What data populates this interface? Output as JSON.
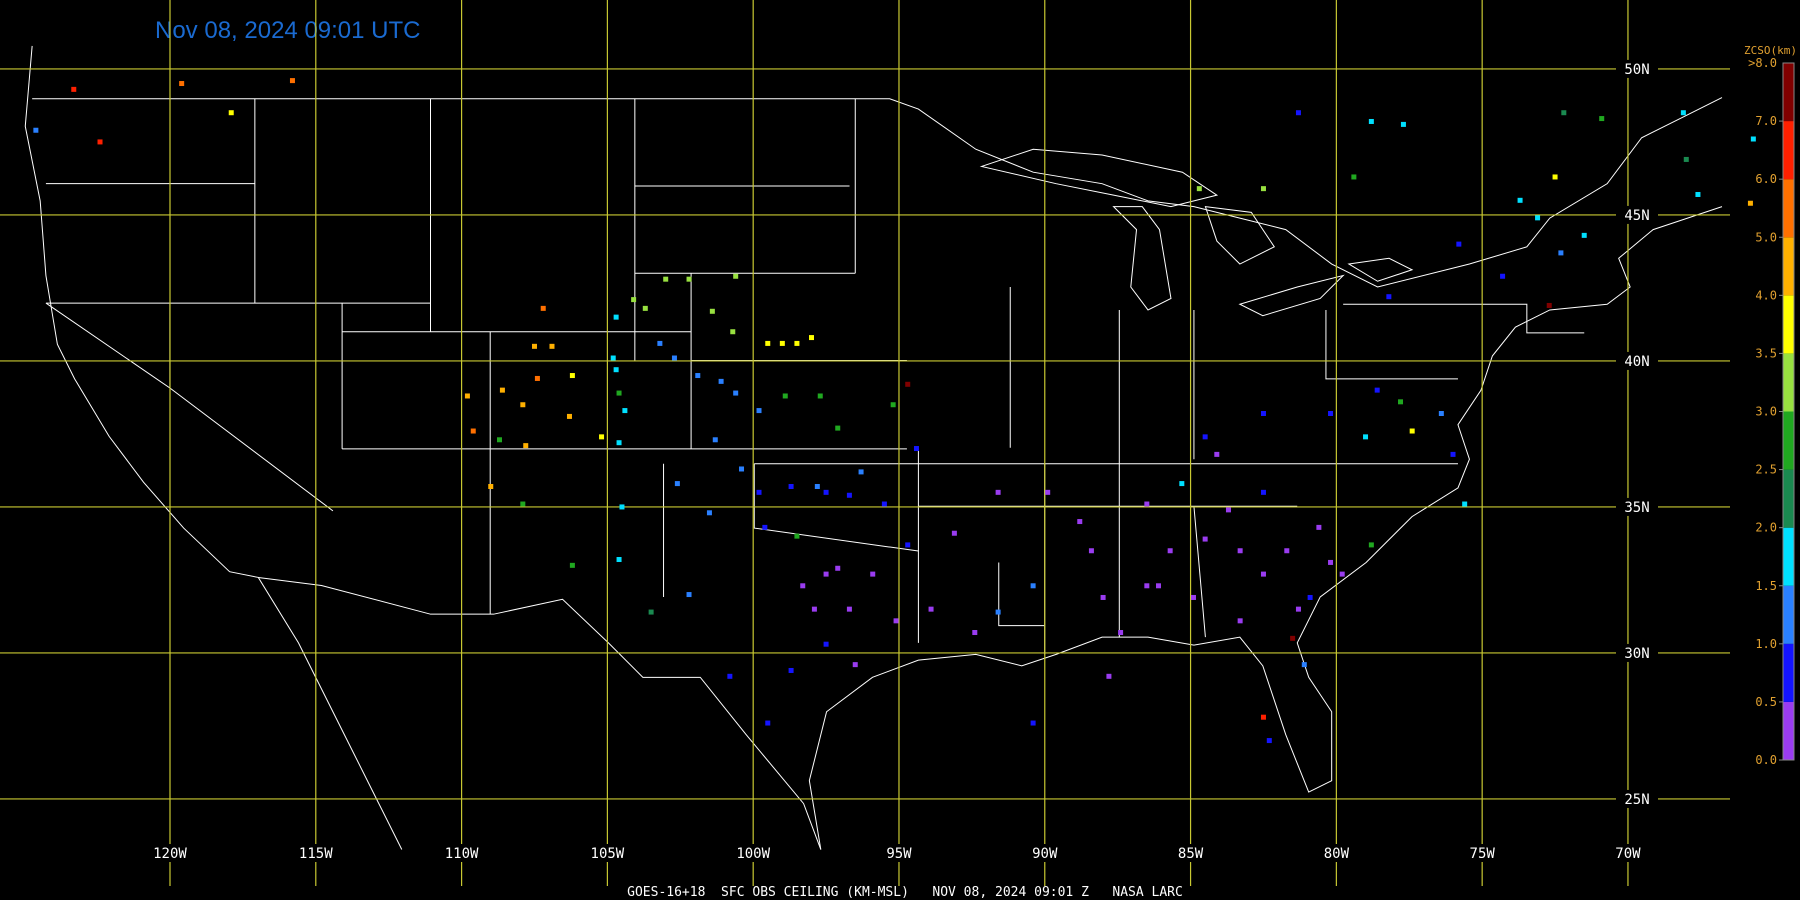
{
  "map": {
    "title": "Nov 08, 2024 09:01 UTC",
    "footer": "GOES-16+18  SFC OBS CEILING (KM-MSL)   NOV 08, 2024 09:01 Z   NASA LARC",
    "xlim": [
      -125.83,
      -64.1
    ],
    "ylim": [
      21.54,
      52.36
    ],
    "grid_color": "#c8c832",
    "lon_ticks": [
      {
        "value": -120,
        "label": "120W"
      },
      {
        "value": -115,
        "label": "115W"
      },
      {
        "value": -110,
        "label": "110W"
      },
      {
        "value": -105,
        "label": "105W"
      },
      {
        "value": -100,
        "label": "100W"
      },
      {
        "value": -95,
        "label": "95W"
      },
      {
        "value": -90,
        "label": "90W"
      },
      {
        "value": -85,
        "label": "85W"
      },
      {
        "value": -80,
        "label": "80W"
      },
      {
        "value": -75,
        "label": "75W"
      },
      {
        "value": -70,
        "label": "70W"
      }
    ],
    "lat_ticks": [
      {
        "value": 25,
        "label": "25N"
      },
      {
        "value": 30,
        "label": "30N"
      },
      {
        "value": 35,
        "label": "35N"
      },
      {
        "value": 40,
        "label": "40N"
      },
      {
        "value": 45,
        "label": "45N"
      },
      {
        "value": 50,
        "label": "50N"
      }
    ],
    "stations": {
      "lon": [
        -123.3,
        -119.6,
        -115.8,
        -117.9,
        -122.4,
        -124.6,
        -107.2,
        -107.5,
        -106.9,
        -108.6,
        -107.9,
        -109.8,
        -109.6,
        -107.8,
        -106.3,
        -109.0,
        -107.4,
        -106.2,
        -104.8,
        -104.7,
        -104.6,
        -104.5,
        -104.6,
        -104.4,
        -104.7,
        -104.6,
        -106.2,
        -107.9,
        -108.7,
        -103.5,
        -103.7,
        -103.0,
        -102.2,
        -101.4,
        -100.7,
        -104.1,
        -100.6,
        -99.5,
        -99.0,
        -98.5,
        -98.0,
        -105.2,
        -103.2,
        -102.7,
        -101.9,
        -101.1,
        -100.6,
        -99.8,
        -101.3,
        -102.6,
        -101.5,
        -102.2,
        -100.4,
        -97.8,
        -96.3,
        -98.9,
        -97.7,
        -97.1,
        -95.2,
        -98.5,
        -99.8,
        -98.7,
        -97.5,
        -96.7,
        -95.5,
        -94.4,
        -94.7,
        -99.6,
        -100.8,
        -98.7,
        -99.5,
        -97.5,
        -97.1,
        -95.9,
        -98.3,
        -97.9,
        -96.7,
        -95.1,
        -96.5,
        -93.9,
        -92.4,
        -93.1,
        -91.6,
        -89.9,
        -88.8,
        -88.0,
        -87.4,
        -86.5,
        -85.7,
        -84.5,
        -83.3,
        -82.5,
        -80.6,
        -81.3,
        -83.3,
        -86.1,
        -84.1,
        -87.8,
        -90.4,
        -90.4,
        -80.2,
        -79.0,
        -78.6,
        -77.8,
        -77.4,
        -76.4,
        -76.0,
        -75.6,
        -82.5,
        -84.5,
        -85.3,
        -82.5,
        -78.8,
        -79.8,
        -80.9,
        -81.5,
        -81.1,
        -82.5,
        -82.3,
        -81.3,
        -78.8,
        -77.7,
        -79.4,
        -75.8,
        -74.3,
        -73.1,
        -72.3,
        -71.5,
        -70.9,
        -72.2,
        -68.1,
        -68.0,
        -67.6,
        -72.7,
        -73.7,
        -72.5,
        -78.2,
        -84.7,
        -82.5,
        -94.7,
        -91.6,
        -65.8,
        -65.7,
        -97.5,
        -84.9,
        -80.2,
        -88.4,
        -81.7,
        -86.5,
        -83.7
      ],
      "lat": [
        49.3,
        49.5,
        49.6,
        48.5,
        47.5,
        47.9,
        41.8,
        40.5,
        40.5,
        39.0,
        38.5,
        38.8,
        37.6,
        37.1,
        38.1,
        35.7,
        39.4,
        39.5,
        40.1,
        39.7,
        37.2,
        35.0,
        33.2,
        38.3,
        41.5,
        38.9,
        33.0,
        35.1,
        37.3,
        31.4,
        41.8,
        42.8,
        42.8,
        41.7,
        41.0,
        42.1,
        42.9,
        40.6,
        40.6,
        40.6,
        40.8,
        37.4,
        40.6,
        40.1,
        39.5,
        39.3,
        38.9,
        38.3,
        37.3,
        35.8,
        34.8,
        32.0,
        36.3,
        35.7,
        36.2,
        38.8,
        38.8,
        37.7,
        38.5,
        34.0,
        35.5,
        35.7,
        35.5,
        35.4,
        35.1,
        37.0,
        33.7,
        34.3,
        29.2,
        29.4,
        27.6,
        30.3,
        32.9,
        32.7,
        32.3,
        31.5,
        31.5,
        31.1,
        29.6,
        31.5,
        30.7,
        34.1,
        35.5,
        35.5,
        34.5,
        31.9,
        30.7,
        35.1,
        33.5,
        33.9,
        33.5,
        32.7,
        34.3,
        31.5,
        31.1,
        32.3,
        36.8,
        29.2,
        27.6,
        32.3,
        38.2,
        37.4,
        39.0,
        38.6,
        37.6,
        38.2,
        36.8,
        35.1,
        38.2,
        37.4,
        35.8,
        35.5,
        33.7,
        32.7,
        31.9,
        30.5,
        29.6,
        27.8,
        27.0,
        48.5,
        48.2,
        48.1,
        46.3,
        44.0,
        42.9,
        44.9,
        43.7,
        44.3,
        48.3,
        48.5,
        48.5,
        46.9,
        45.7,
        41.9,
        45.5,
        46.3,
        42.2,
        45.9,
        45.9,
        39.2,
        31.4,
        45.4,
        47.6,
        32.7,
        31.9,
        33.1,
        33.5,
        33.5,
        32.3,
        34.9
      ],
      "value": [
        6.5,
        5.5,
        5.5,
        3.8,
        6.5,
        1.2,
        5.5,
        4.5,
        4.5,
        4.5,
        4.5,
        4.5,
        5.5,
        4.5,
        4.5,
        4.5,
        5.5,
        3.8,
        1.7,
        1.7,
        1.7,
        1.7,
        1.7,
        1.7,
        1.7,
        2.7,
        2.7,
        2.7,
        2.7,
        2.2,
        3.2,
        3.2,
        3.2,
        3.2,
        3.2,
        3.2,
        3.2,
        3.8,
        3.8,
        3.8,
        3.8,
        3.8,
        1.2,
        1.2,
        1.2,
        1.2,
        1.2,
        1.2,
        1.2,
        1.2,
        1.2,
        1.2,
        1.2,
        1.2,
        1.2,
        2.7,
        2.7,
        2.7,
        2.7,
        2.7,
        0.8,
        0.8,
        0.8,
        0.8,
        0.8,
        0.8,
        0.8,
        0.8,
        0.8,
        0.8,
        0.8,
        0.8,
        0.3,
        0.3,
        0.3,
        0.3,
        0.3,
        0.3,
        0.3,
        0.3,
        0.3,
        0.3,
        0.3,
        0.3,
        0.3,
        0.3,
        0.3,
        0.3,
        0.3,
        0.3,
        0.3,
        0.3,
        0.3,
        0.3,
        0.3,
        0.3,
        0.3,
        0.3,
        0.8,
        1.2,
        0.8,
        1.7,
        0.8,
        2.7,
        3.8,
        1.2,
        0.8,
        1.7,
        0.8,
        0.8,
        1.7,
        0.8,
        2.7,
        0.3,
        0.8,
        7.5,
        1.2,
        6.5,
        0.8,
        0.8,
        1.7,
        1.7,
        2.7,
        0.8,
        0.8,
        1.7,
        1.2,
        1.7,
        2.7,
        2.2,
        1.7,
        2.2,
        1.7,
        7.5,
        1.7,
        3.8,
        0.8,
        3.2,
        3.2,
        7.5,
        1.2,
        4.5,
        1.7,
        0.3,
        0.3,
        0.3,
        0.3,
        0.3,
        0.3,
        0.3
      ]
    },
    "colorbar": {
      "title": "ZCSO(km)",
      "top_label": ">8.0",
      "ticks": [
        {
          "value": 0,
          "label": "0.0"
        },
        {
          "value": 0.5,
          "label": "0.5"
        },
        {
          "value": 1,
          "label": "1.0"
        },
        {
          "value": 1.5,
          "label": "1.5"
        },
        {
          "value": 2,
          "label": "2.0"
        },
        {
          "value": 2.5,
          "label": "2.5"
        },
        {
          "value": 3,
          "label": "3.0"
        },
        {
          "value": 3.5,
          "label": "3.5"
        },
        {
          "value": 4,
          "label": "4.0"
        },
        {
          "value": 5,
          "label": "5.0"
        },
        {
          "value": 6,
          "label": "6.0"
        },
        {
          "value": 7,
          "label": "7.0"
        }
      ],
      "colors": [
        "#9a3cf0",
        "#1414ff",
        "#2a80ff",
        "#00e0ff",
        "#1a8a50",
        "#20a820",
        "#98e040",
        "#ffff00",
        "#ffb000",
        "#ff7000",
        "#ff2000",
        "#800000"
      ]
    }
  }
}
